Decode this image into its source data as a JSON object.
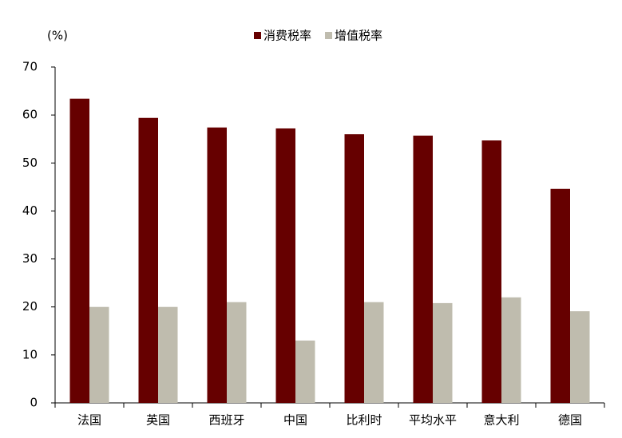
{
  "chart_data": {
    "type": "bar",
    "y_label": "(%)",
    "categories": [
      "法国",
      "英国",
      "西班牙",
      "中国",
      "比利时",
      "平均水平",
      "意大利",
      "德国"
    ],
    "series": [
      {
        "name": "消费税率",
        "color": "#660000",
        "values": [
          63.4,
          59.4,
          57.4,
          57.2,
          56.0,
          55.7,
          54.7,
          44.6
        ]
      },
      {
        "name": "增值税率",
        "color": "#bfbcae",
        "values": [
          20,
          20,
          21,
          13,
          21,
          20.8,
          22,
          19.1
        ]
      }
    ],
    "ylim": [
      0,
      70
    ],
    "yticks": [
      0,
      10,
      20,
      30,
      40,
      50,
      60,
      70
    ],
    "grid": false,
    "legend": "top"
  }
}
